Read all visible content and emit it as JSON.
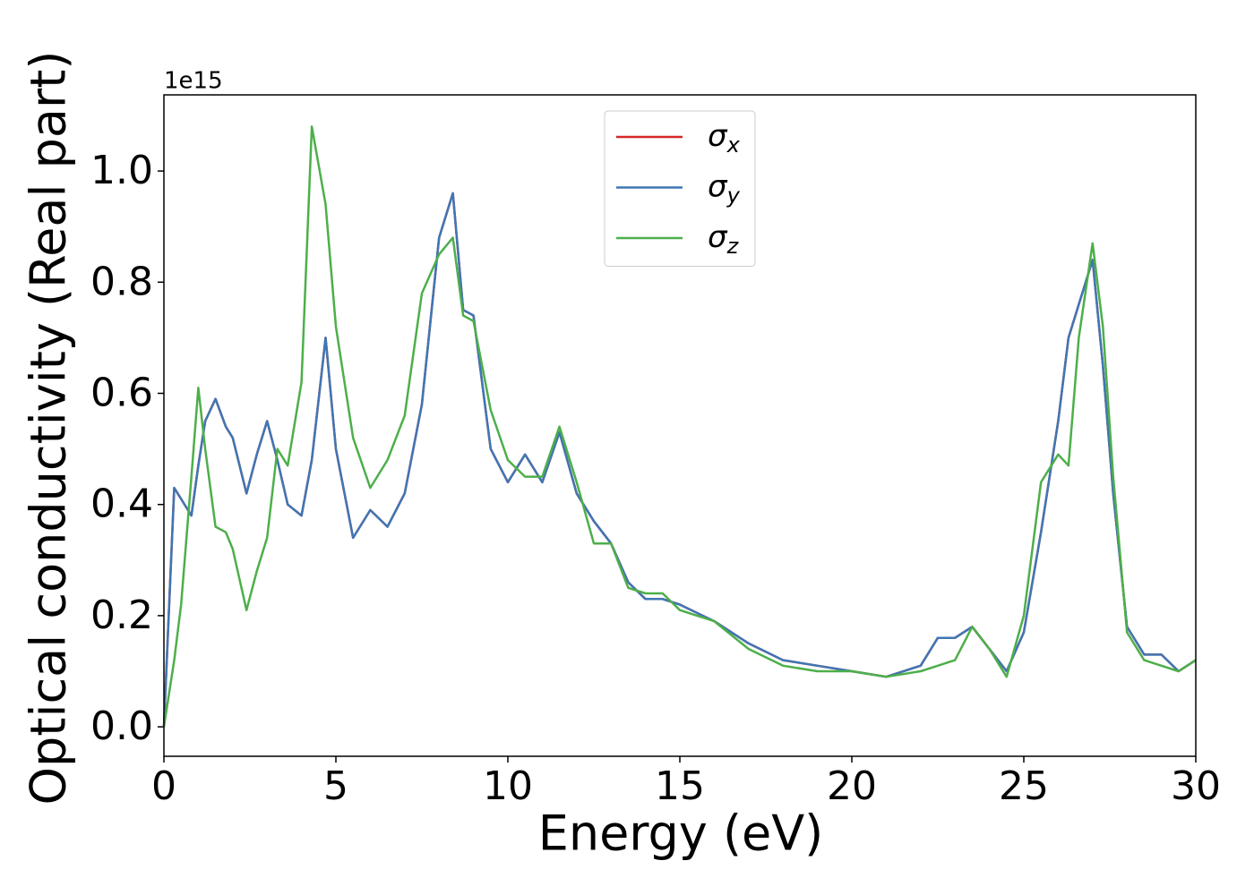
{
  "chart_data": {
    "type": "line",
    "y_label": "Optical conductivity (Real part)",
    "x_label": "Energy (eV)",
    "y_offset_label": "1e15",
    "xlim": [
      0,
      30
    ],
    "ylim": [
      -0.053,
      1.137
    ],
    "xticks": [
      0,
      5,
      10,
      15,
      20,
      25,
      30
    ],
    "yticks": [
      {
        "value": 0,
        "label": "0.0"
      },
      0.2,
      0.4,
      0.6,
      0.8,
      {
        "value": 1,
        "label": "1.0"
      }
    ],
    "grid": false,
    "legend": "upper center",
    "x": [
      0,
      0.3,
      0.5,
      0.8,
      1.0,
      1.2,
      1.5,
      1.8,
      2.0,
      2.4,
      2.7,
      3.0,
      3.3,
      3.6,
      4.0,
      4.3,
      4.7,
      5.0,
      5.5,
      6.0,
      6.5,
      7.0,
      7.5,
      8.0,
      8.4,
      8.7,
      9.0,
      9.5,
      10.0,
      10.5,
      11.0,
      11.5,
      12.0,
      12.5,
      13.0,
      13.5,
      14.0,
      14.5,
      15.0,
      16.0,
      17.0,
      18.0,
      19.0,
      20.0,
      21.0,
      22.0,
      22.5,
      23.0,
      23.5,
      24.0,
      24.5,
      25.0,
      25.5,
      26.0,
      26.3,
      26.6,
      27.0,
      27.3,
      27.6,
      28.0,
      28.5,
      29.0,
      29.5,
      30.0
    ],
    "series": [
      {
        "name": "σx",
        "color": "#d62728",
        "values": [
          0,
          0.43,
          0.41,
          0.38,
          0.47,
          0.55,
          0.59,
          0.54,
          0.52,
          0.42,
          0.49,
          0.55,
          0.48,
          0.4,
          0.38,
          0.48,
          0.7,
          0.5,
          0.34,
          0.39,
          0.36,
          0.42,
          0.58,
          0.88,
          0.96,
          0.75,
          0.74,
          0.5,
          0.44,
          0.49,
          0.44,
          0.53,
          0.42,
          0.37,
          0.33,
          0.26,
          0.23,
          0.23,
          0.22,
          0.19,
          0.15,
          0.12,
          0.11,
          0.1,
          0.09,
          0.11,
          0.16,
          0.16,
          0.18,
          0.14,
          0.1,
          0.17,
          0.35,
          0.55,
          0.7,
          0.76,
          0.84,
          0.65,
          0.42,
          0.18,
          0.13,
          0.13,
          0.1,
          0.12
        ]
      },
      {
        "name": "σy",
        "color": "#3f76b4",
        "values": [
          0,
          0.43,
          0.41,
          0.38,
          0.47,
          0.55,
          0.59,
          0.54,
          0.52,
          0.42,
          0.49,
          0.55,
          0.48,
          0.4,
          0.38,
          0.48,
          0.7,
          0.5,
          0.34,
          0.39,
          0.36,
          0.42,
          0.58,
          0.88,
          0.96,
          0.75,
          0.74,
          0.5,
          0.44,
          0.49,
          0.44,
          0.53,
          0.42,
          0.37,
          0.33,
          0.26,
          0.23,
          0.23,
          0.22,
          0.19,
          0.15,
          0.12,
          0.11,
          0.1,
          0.09,
          0.11,
          0.16,
          0.16,
          0.18,
          0.14,
          0.1,
          0.17,
          0.35,
          0.55,
          0.7,
          0.76,
          0.84,
          0.65,
          0.42,
          0.18,
          0.13,
          0.13,
          0.1,
          0.12
        ]
      },
      {
        "name": "σz",
        "color": "#4daf4a",
        "values": [
          0,
          0.12,
          0.22,
          0.45,
          0.61,
          0.5,
          0.36,
          0.35,
          0.32,
          0.21,
          0.28,
          0.34,
          0.5,
          0.47,
          0.62,
          1.08,
          0.94,
          0.72,
          0.52,
          0.43,
          0.48,
          0.56,
          0.78,
          0.85,
          0.88,
          0.74,
          0.73,
          0.57,
          0.48,
          0.45,
          0.45,
          0.54,
          0.44,
          0.33,
          0.33,
          0.25,
          0.24,
          0.24,
          0.21,
          0.19,
          0.14,
          0.11,
          0.1,
          0.1,
          0.09,
          0.1,
          0.11,
          0.12,
          0.18,
          0.14,
          0.09,
          0.2,
          0.44,
          0.49,
          0.47,
          0.7,
          0.87,
          0.72,
          0.45,
          0.17,
          0.12,
          0.11,
          0.1,
          0.12
        ]
      }
    ]
  }
}
